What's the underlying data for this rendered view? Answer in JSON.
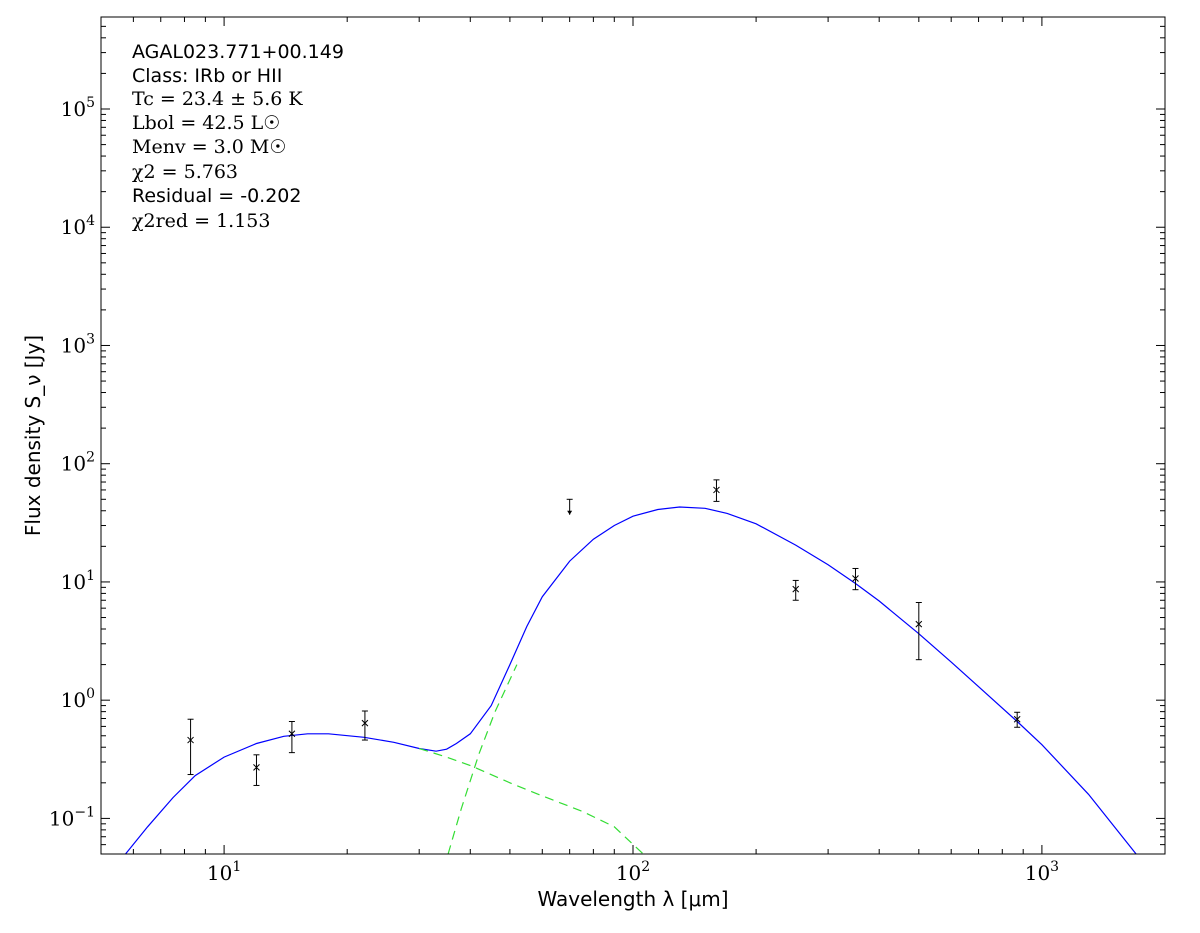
{
  "chart_data": {
    "type": "line",
    "xlabel": "Wavelength λ [μm]",
    "ylabel": "Flux density S_ν [Jy]",
    "x_scale": "log",
    "y_scale": "log",
    "xlim": [
      5,
      2000
    ],
    "ylim": [
      0.05,
      600000
    ],
    "x_ticks": [
      {
        "value": 10,
        "base": "10",
        "exp": "1"
      },
      {
        "value": 100,
        "base": "10",
        "exp": "2"
      },
      {
        "value": 1000,
        "base": "10",
        "exp": "3"
      }
    ],
    "y_ticks": [
      {
        "value": 0.1,
        "base": "10",
        "exp": "−1"
      },
      {
        "value": 1,
        "base": "10",
        "exp": "0"
      },
      {
        "value": 10,
        "base": "10",
        "exp": "1"
      },
      {
        "value": 100,
        "base": "10",
        "exp": "2"
      },
      {
        "value": 1000,
        "base": "10",
        "exp": "3"
      },
      {
        "value": 10000,
        "base": "10",
        "exp": "4"
      },
      {
        "value": 100000,
        "base": "10",
        "exp": "5"
      }
    ],
    "grid": false,
    "annotations": [
      {
        "text": "AGAL023.771+00.149",
        "style": "sans"
      },
      {
        "text": "Class: IRb or HII",
        "style": "sans"
      },
      {
        "text": "Tc = 23.4 ± 5.6 K",
        "style": "math"
      },
      {
        "text": "Lbol = 42.5 L☉",
        "style": "math"
      },
      {
        "text": "Menv = 3.0 M☉",
        "style": "math"
      },
      {
        "text": "χ2 = 5.763",
        "style": "math"
      },
      {
        "text": "Residual = -0.202",
        "style": "sans"
      },
      {
        "text": "χ2red = 1.153",
        "style": "math"
      }
    ],
    "measurements": [
      {
        "x": 8.28,
        "y": 0.46,
        "y_low": 0.235,
        "y_high": 0.69,
        "upper_limit": false
      },
      {
        "x": 12.0,
        "y": 0.27,
        "y_low": 0.19,
        "y_high": 0.345,
        "upper_limit": false
      },
      {
        "x": 14.65,
        "y": 0.52,
        "y_low": 0.36,
        "y_high": 0.66,
        "upper_limit": false
      },
      {
        "x": 22.1,
        "y": 0.64,
        "y_low": 0.46,
        "y_high": 0.81,
        "upper_limit": false
      },
      {
        "x": 70,
        "y": 44,
        "y_low": 37,
        "y_high": 50,
        "upper_limit": true
      },
      {
        "x": 160,
        "y": 60,
        "y_low": 48,
        "y_high": 73,
        "upper_limit": false
      },
      {
        "x": 250,
        "y": 8.7,
        "y_low": 7.0,
        "y_high": 10.3,
        "upper_limit": false
      },
      {
        "x": 350,
        "y": 10.7,
        "y_low": 8.6,
        "y_high": 13.0,
        "upper_limit": false
      },
      {
        "x": 500,
        "y": 4.4,
        "y_low": 2.2,
        "y_high": 6.7,
        "upper_limit": false
      },
      {
        "x": 870,
        "y": 0.69,
        "y_low": 0.59,
        "y_high": 0.79,
        "upper_limit": false
      }
    ],
    "series": [
      {
        "kind": "total_model",
        "color": "#0000ff",
        "dash": false,
        "points": [
          [
            5.74,
            0.05
          ],
          [
            6.5,
            0.085
          ],
          [
            7.5,
            0.15
          ],
          [
            8.5,
            0.23
          ],
          [
            10,
            0.33
          ],
          [
            12,
            0.43
          ],
          [
            14,
            0.495
          ],
          [
            16,
            0.52
          ],
          [
            18,
            0.52
          ],
          [
            22,
            0.485
          ],
          [
            26,
            0.44
          ],
          [
            30,
            0.39
          ],
          [
            33,
            0.37
          ],
          [
            35,
            0.385
          ],
          [
            37,
            0.43
          ],
          [
            40,
            0.52
          ],
          [
            45,
            0.9
          ],
          [
            50,
            2.0
          ],
          [
            55,
            4.2
          ],
          [
            60,
            7.5
          ],
          [
            70,
            15
          ],
          [
            80,
            23
          ],
          [
            90,
            30
          ],
          [
            100,
            36
          ],
          [
            115,
            41
          ],
          [
            130,
            43
          ],
          [
            150,
            42
          ],
          [
            170,
            38
          ],
          [
            200,
            31
          ],
          [
            250,
            20.5
          ],
          [
            300,
            14
          ],
          [
            350,
            9.7
          ],
          [
            400,
            6.9
          ],
          [
            500,
            3.65
          ],
          [
            600,
            2.1
          ],
          [
            700,
            1.3
          ],
          [
            870,
            0.66
          ],
          [
            1000,
            0.42
          ],
          [
            1300,
            0.16
          ],
          [
            1700,
            0.05
          ]
        ]
      },
      {
        "kind": "warm_component",
        "color": "#33dd33",
        "dash": true,
        "points": [
          [
            30,
            0.39
          ],
          [
            35,
            0.33
          ],
          [
            40,
            0.28
          ],
          [
            50,
            0.2
          ],
          [
            60,
            0.155
          ],
          [
            75,
            0.115
          ],
          [
            90,
            0.085
          ],
          [
            106,
            0.05
          ]
        ]
      },
      {
        "kind": "cold_component",
        "color": "#33dd33",
        "dash": true,
        "points": [
          [
            35.3,
            0.05
          ],
          [
            38,
            0.12
          ],
          [
            42,
            0.35
          ],
          [
            46,
            0.8
          ],
          [
            52,
            2.0
          ]
        ]
      }
    ]
  }
}
